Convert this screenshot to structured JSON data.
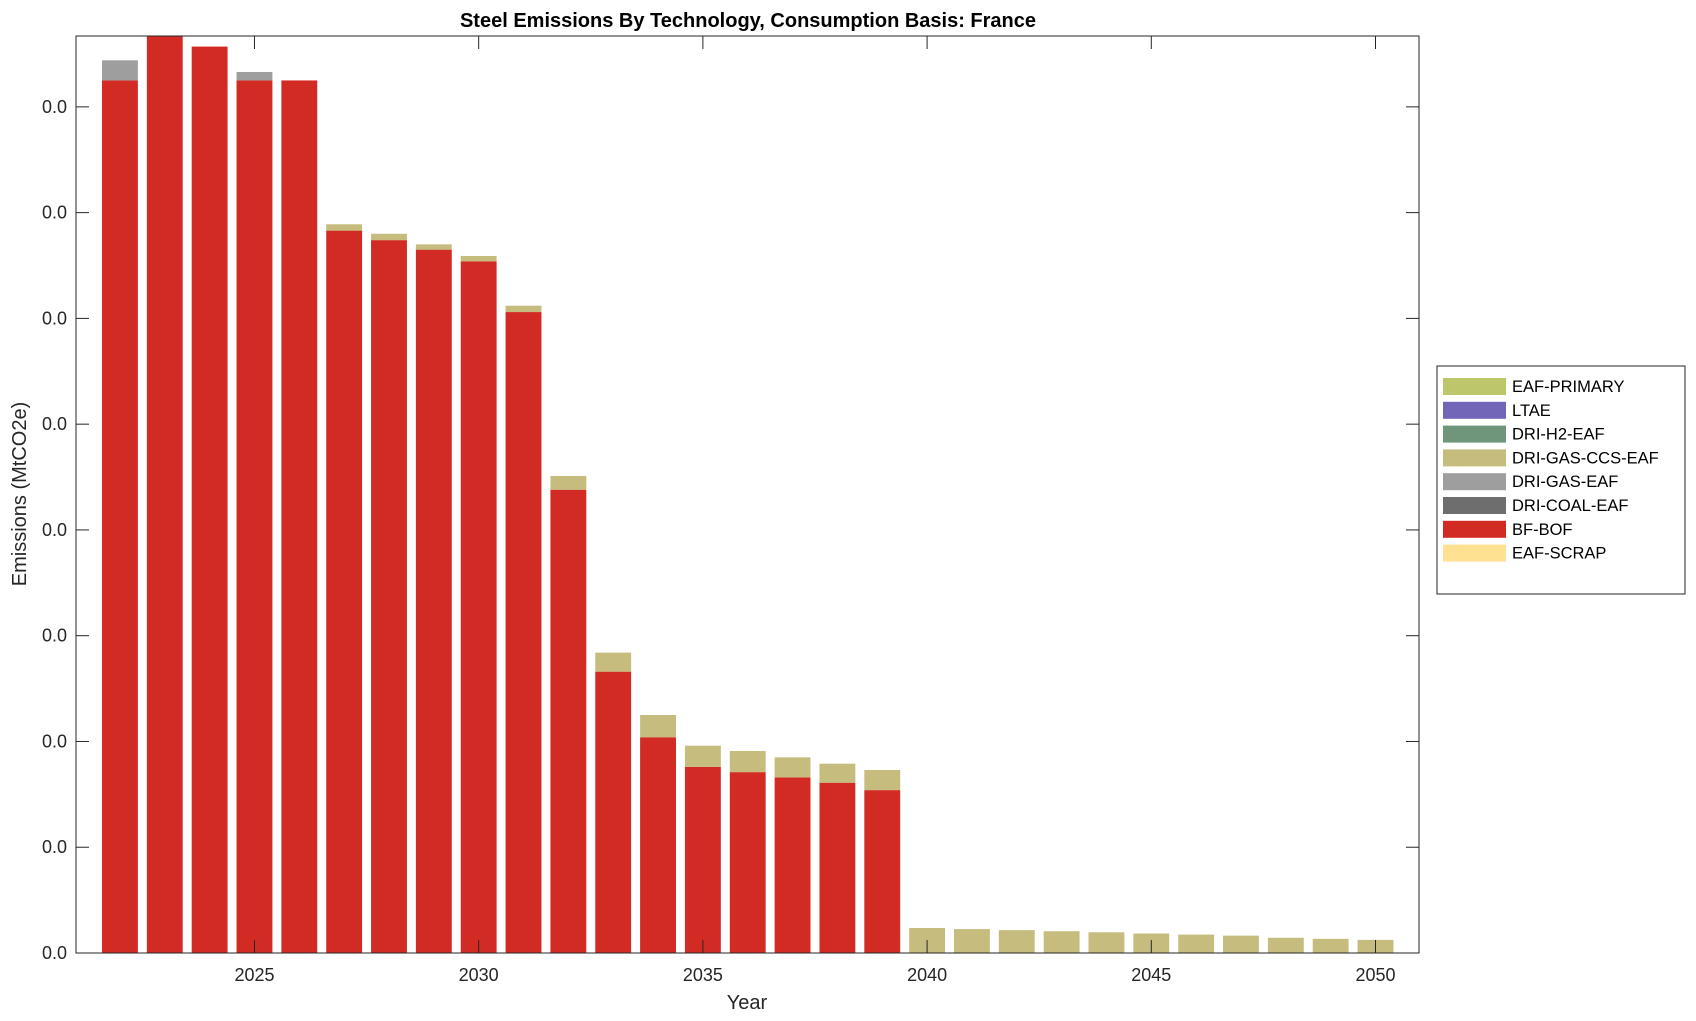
{
  "chart_data": {
    "type": "bar",
    "stacked": true,
    "title": "Steel Emissions By Technology, Consumption Basis: France",
    "xlabel": "Year",
    "ylabel": "Emissions (MtCO2e)",
    "x": [
      2022,
      2023,
      2024,
      2025,
      2026,
      2027,
      2028,
      2029,
      2030,
      2031,
      2032,
      2033,
      2034,
      2035,
      2036,
      2037,
      2038,
      2039,
      2040,
      2041,
      2042,
      2043,
      2044,
      2045,
      2046,
      2047,
      2048,
      2049,
      2050
    ],
    "xlim": [
      2021.02,
      2050.97
    ],
    "xticks": [
      2025,
      2030,
      2035,
      2040,
      2045,
      2050
    ],
    "xtick_labels": [
      "2025",
      "2030",
      "2035",
      "2040",
      "2045",
      "2050"
    ],
    "ylim": [
      0,
      0.04335
    ],
    "yticks": [
      0,
      0.005,
      0.01,
      0.015,
      0.02,
      0.025,
      0.03,
      0.035,
      0.04
    ],
    "ytick_labels": [
      "0.0",
      "0.0",
      "0.0",
      "0.0",
      "0.0",
      "0.0",
      "0.0",
      "0.0",
      "0.0"
    ],
    "grid": false,
    "legend_placement": "outside-right",
    "series": [
      {
        "name": "EAF-SCRAP",
        "color": "#FFE291",
        "values": [
          0,
          0,
          0,
          0,
          0,
          0,
          0,
          0,
          0,
          0,
          0,
          0,
          0,
          0,
          0,
          0,
          0,
          0,
          0,
          0,
          0,
          0,
          0,
          0,
          0,
          0,
          0,
          0,
          0
        ]
      },
      {
        "name": "BF-BOF",
        "color": "#D22B24",
        "values": [
          0.04125,
          0.04335,
          0.04285,
          0.04125,
          0.04125,
          0.03415,
          0.0337,
          0.03325,
          0.0327,
          0.0303,
          0.0219,
          0.0133,
          0.0102,
          0.0088,
          0.00855,
          0.0083,
          0.00805,
          0.0077,
          0,
          0,
          0,
          0,
          0,
          0,
          0,
          0,
          0,
          0,
          0
        ]
      },
      {
        "name": "DRI-COAL-EAF",
        "color": "#6E6E6E",
        "values": [
          0,
          0,
          0,
          0,
          0,
          0,
          0,
          0,
          0,
          0,
          0,
          0,
          0,
          0,
          0,
          0,
          0,
          0,
          0,
          0,
          0,
          0,
          0,
          0,
          0,
          0,
          0,
          0,
          0
        ]
      },
      {
        "name": "DRI-GAS-EAF",
        "color": "#9E9E9E",
        "values": [
          0.00095,
          0,
          0,
          0.0004,
          0,
          0,
          0,
          0,
          0,
          0,
          0,
          0,
          0,
          0,
          0,
          0,
          0,
          0,
          0,
          0,
          0,
          0,
          0,
          0,
          0,
          0,
          0,
          0,
          0
        ]
      },
      {
        "name": "DRI-GAS-CCS-EAF",
        "color": "#C6BC7D",
        "values": [
          0,
          0,
          0,
          0,
          0,
          0.0003,
          0.0003,
          0.00025,
          0.00025,
          0.0003,
          0.00065,
          0.0009,
          0.00105,
          0.001,
          0.001,
          0.00095,
          0.0009,
          0.00095,
          0.00118,
          0.00113,
          0.00108,
          0.00103,
          0.00098,
          0.00092,
          0.00087,
          0.00082,
          0.00072,
          0.00067,
          0.00062
        ]
      },
      {
        "name": "DRI-H2-EAF",
        "color": "#6F967A",
        "values": [
          0,
          0,
          0,
          0,
          0,
          0,
          0,
          0,
          0,
          0,
          0,
          0,
          0,
          0,
          0,
          0,
          0,
          0,
          0,
          0,
          0,
          0,
          0,
          0,
          0,
          0,
          0,
          0,
          0
        ]
      },
      {
        "name": "LTAE",
        "color": "#7166B7",
        "values": [
          0,
          0,
          0,
          0,
          0,
          0,
          0,
          0,
          0,
          0,
          0,
          0,
          0,
          0,
          0,
          0,
          0,
          0,
          0,
          0,
          0,
          0,
          0,
          0,
          0,
          0,
          0,
          0,
          0
        ]
      },
      {
        "name": "EAF-PRIMARY",
        "color": "#BDC66A",
        "values": [
          0,
          0,
          0,
          0,
          0,
          0,
          0,
          0,
          0,
          0,
          0,
          0,
          0,
          0,
          0,
          0,
          0,
          0,
          0,
          0,
          0,
          0,
          0,
          0,
          0,
          0,
          0,
          0,
          0
        ]
      }
    ],
    "legend_order": [
      "EAF-PRIMARY",
      "LTAE",
      "DRI-H2-EAF",
      "DRI-GAS-CCS-EAF",
      "DRI-GAS-EAF",
      "DRI-COAL-EAF",
      "BF-BOF",
      "EAF-SCRAP"
    ]
  }
}
